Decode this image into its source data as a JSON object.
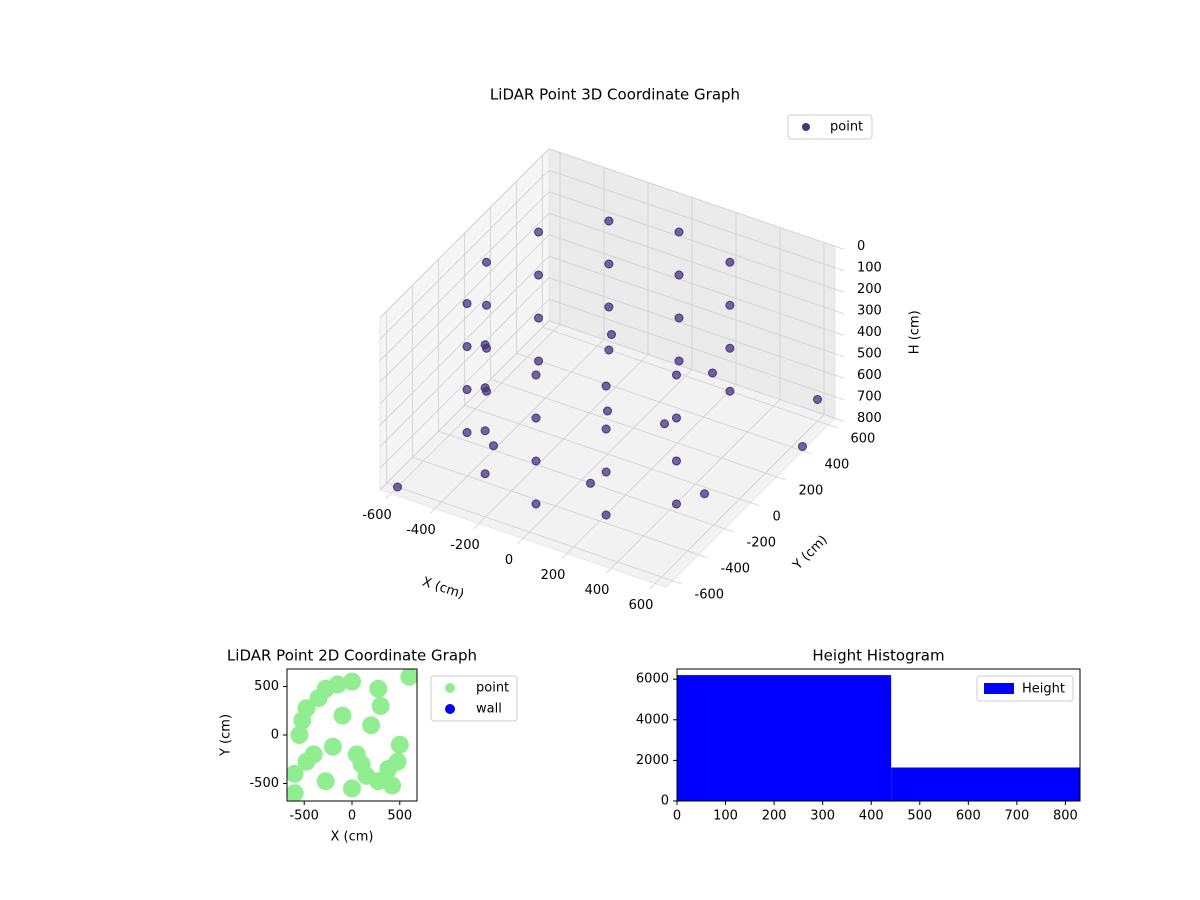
{
  "chart_data": [
    {
      "type": "scatter3d",
      "title": "LiDAR Point 3D Coordinate Graph",
      "xlabel": "X (cm)",
      "ylabel": "Y (cm)",
      "zlabel": "H (cm)",
      "xlim": [
        -650,
        650
      ],
      "ylim": [
        -650,
        650
      ],
      "zlim": [
        0,
        800
      ],
      "z_inverted": true,
      "xticks": [
        -600,
        -400,
        -200,
        0,
        200,
        400,
        600
      ],
      "yticks": [
        -600,
        -400,
        -200,
        0,
        200,
        400,
        600
      ],
      "zticks": [
        0,
        100,
        200,
        300,
        400,
        500,
        600,
        700,
        800
      ],
      "grid": true,
      "legend": "upper right",
      "series": [
        {
          "name": "point",
          "color": "#46337e",
          "x": [
            275,
            0,
            -275,
            -476,
            -550,
            -476,
            -275,
            0,
            275,
            476,
            275,
            0,
            -275,
            -476,
            -550,
            -476,
            -275,
            0,
            275,
            476,
            275,
            0,
            -275,
            -476,
            -550,
            -476,
            -275,
            0,
            275,
            476,
            275,
            0,
            -275,
            -476,
            -550,
            -476,
            -275,
            0,
            275,
            476,
            600,
            650,
            -600,
            200,
            -100,
            300,
            -400,
            500,
            0,
            100
          ],
          "y": [
            476,
            550,
            476,
            275,
            0,
            -275,
            -476,
            -550,
            -476,
            -275,
            476,
            550,
            476,
            275,
            0,
            -275,
            -476,
            -550,
            -476,
            -275,
            476,
            550,
            476,
            275,
            0,
            -275,
            -476,
            -550,
            -476,
            -275,
            476,
            550,
            476,
            275,
            0,
            -275,
            -476,
            -550,
            -476,
            -275,
            600,
            400,
            -600,
            100,
            200,
            300,
            -200,
            -100,
            0,
            -300
          ],
          "z": [
            100,
            100,
            100,
            100,
            100,
            100,
            100,
            100,
            100,
            100,
            300,
            300,
            300,
            300,
            300,
            300,
            300,
            300,
            300,
            300,
            500,
            500,
            500,
            500,
            500,
            500,
            500,
            500,
            500,
            500,
            700,
            700,
            700,
            700,
            700,
            700,
            700,
            700,
            700,
            700,
            700,
            780,
            800,
            650,
            400,
            500,
            780,
            750,
            600,
            720
          ]
        }
      ]
    },
    {
      "type": "scatter",
      "title": "LiDAR Point 2D Coordinate Graph",
      "xlabel": "X (cm)",
      "ylabel": "Y (cm)",
      "xlim": [
        -680,
        680
      ],
      "ylim": [
        -680,
        680
      ],
      "xticks": [
        -500,
        0,
        500
      ],
      "yticks": [
        -500,
        0,
        500
      ],
      "legend": "outside right",
      "series": [
        {
          "name": "point",
          "color": "#90ee90",
          "x": [
            275,
            0,
            -275,
            -476,
            -550,
            -476,
            -275,
            0,
            275,
            476,
            600,
            -600,
            200,
            -100,
            300,
            -400,
            500,
            100,
            -350,
            -200,
            150,
            380,
            -520,
            50,
            420,
            -600,
            -150
          ],
          "y": [
            476,
            550,
            476,
            275,
            0,
            -275,
            -476,
            -550,
            -476,
            -275,
            600,
            -600,
            100,
            200,
            300,
            -200,
            -100,
            -300,
            380,
            -120,
            -420,
            -350,
            150,
            -200,
            -520,
            -400,
            520
          ]
        },
        {
          "name": "wall",
          "color": "#0000ff",
          "x": [],
          "y": []
        }
      ]
    },
    {
      "type": "histogram",
      "title": "Height Histogram",
      "bins": [
        0,
        441,
        830
      ],
      "values": [
        6200,
        1650
      ],
      "name": "Height",
      "color": "#0000ff",
      "xlim": [
        0,
        830
      ],
      "ylim": [
        0,
        6500
      ],
      "xticks": [
        0,
        100,
        200,
        300,
        400,
        500,
        600,
        700,
        800
      ],
      "yticks": [
        0,
        2000,
        4000,
        6000
      ],
      "legend": "upper right"
    }
  ]
}
